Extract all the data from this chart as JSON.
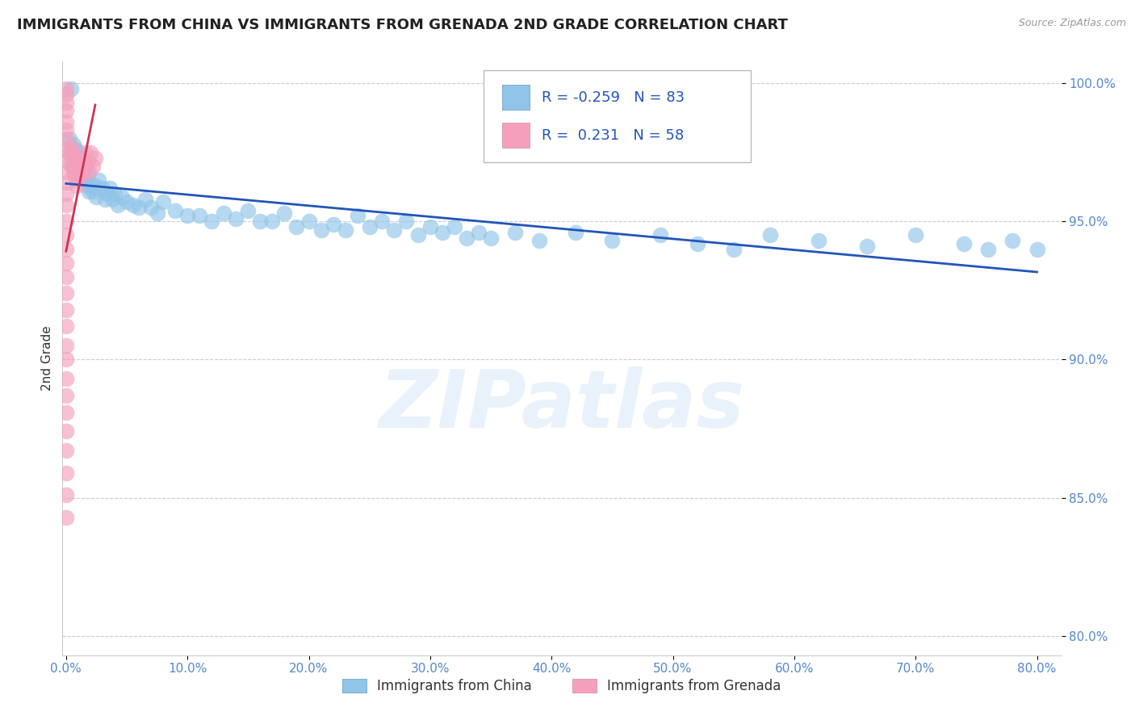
{
  "title": "IMMIGRANTS FROM CHINA VS IMMIGRANTS FROM GRENADA 2ND GRADE CORRELATION CHART",
  "source": "Source: ZipAtlas.com",
  "ylabel": "2nd Grade",
  "legend_china": "Immigrants from China",
  "legend_grenada": "Immigrants from Grenada",
  "R_china": -0.259,
  "N_china": 83,
  "R_grenada": 0.231,
  "N_grenada": 58,
  "xlim_min": -0.003,
  "xlim_max": 0.82,
  "ylim_min": 0.793,
  "ylim_max": 1.008,
  "yticks": [
    0.8,
    0.85,
    0.9,
    0.95,
    1.0
  ],
  "ytick_labels": [
    "80.0%",
    "85.0%",
    "90.0%",
    "95.0%",
    "100.0%"
  ],
  "xticks": [
    0.0,
    0.1,
    0.2,
    0.3,
    0.4,
    0.5,
    0.6,
    0.7,
    0.8
  ],
  "xtick_labels": [
    "0.0%",
    "10.0%",
    "20.0%",
    "30.0%",
    "40.0%",
    "50.0%",
    "60.0%",
    "70.0%",
    "80.0%"
  ],
  "color_china": "#90C4E8",
  "color_grenada": "#F4A0BC",
  "trendline_china": "#2255BB",
  "trendline_grenada": "#CC3355",
  "watermark": "ZIPatlas",
  "dot_size": 200,
  "china_x": [
    0.003,
    0.004,
    0.005,
    0.005,
    0.006,
    0.007,
    0.008,
    0.008,
    0.009,
    0.01,
    0.01,
    0.011,
    0.012,
    0.012,
    0.013,
    0.014,
    0.015,
    0.016,
    0.017,
    0.018,
    0.019,
    0.02,
    0.022,
    0.024,
    0.025,
    0.027,
    0.03,
    0.032,
    0.034,
    0.036,
    0.038,
    0.04,
    0.043,
    0.046,
    0.05,
    0.055,
    0.06,
    0.065,
    0.07,
    0.075,
    0.08,
    0.09,
    0.1,
    0.11,
    0.12,
    0.13,
    0.14,
    0.15,
    0.16,
    0.17,
    0.18,
    0.19,
    0.2,
    0.21,
    0.22,
    0.23,
    0.24,
    0.25,
    0.26,
    0.27,
    0.28,
    0.29,
    0.3,
    0.31,
    0.32,
    0.33,
    0.34,
    0.35,
    0.37,
    0.39,
    0.42,
    0.45,
    0.49,
    0.52,
    0.55,
    0.58,
    0.62,
    0.66,
    0.7,
    0.74,
    0.76,
    0.78,
    0.8
  ],
  "china_y": [
    0.98,
    0.998,
    0.975,
    0.97,
    0.978,
    0.974,
    0.972,
    0.976,
    0.97,
    0.975,
    0.968,
    0.973,
    0.97,
    0.966,
    0.968,
    0.965,
    0.97,
    0.965,
    0.963,
    0.967,
    0.961,
    0.963,
    0.961,
    0.963,
    0.959,
    0.965,
    0.962,
    0.958,
    0.96,
    0.962,
    0.958,
    0.96,
    0.956,
    0.959,
    0.957,
    0.956,
    0.955,
    0.958,
    0.955,
    0.953,
    0.957,
    0.954,
    0.952,
    0.952,
    0.95,
    0.953,
    0.951,
    0.954,
    0.95,
    0.95,
    0.953,
    0.948,
    0.95,
    0.947,
    0.949,
    0.947,
    0.952,
    0.948,
    0.95,
    0.947,
    0.95,
    0.945,
    0.948,
    0.946,
    0.948,
    0.944,
    0.946,
    0.944,
    0.946,
    0.943,
    0.946,
    0.943,
    0.945,
    0.942,
    0.94,
    0.945,
    0.943,
    0.941,
    0.945,
    0.942,
    0.94,
    0.943,
    0.94
  ],
  "grenada_x": [
    0.0,
    0.0,
    0.0,
    0.0,
    0.0,
    0.0,
    0.0,
    0.0,
    0.0,
    0.0,
    0.0,
    0.0,
    0.0,
    0.0,
    0.0,
    0.0,
    0.0,
    0.0,
    0.0,
    0.0,
    0.0,
    0.0,
    0.0,
    0.0,
    0.0,
    0.0,
    0.0,
    0.0,
    0.0,
    0.0,
    0.0,
    0.003,
    0.004,
    0.004,
    0.005,
    0.005,
    0.006,
    0.006,
    0.007,
    0.007,
    0.008,
    0.008,
    0.009,
    0.009,
    0.01,
    0.01,
    0.011,
    0.012,
    0.013,
    0.014,
    0.015,
    0.016,
    0.017,
    0.018,
    0.019,
    0.02,
    0.022,
    0.024
  ],
  "grenada_y": [
    0.998,
    0.996,
    0.993,
    0.99,
    0.986,
    0.983,
    0.98,
    0.976,
    0.972,
    0.968,
    0.964,
    0.96,
    0.956,
    0.95,
    0.945,
    0.94,
    0.935,
    0.93,
    0.924,
    0.918,
    0.912,
    0.905,
    0.9,
    0.893,
    0.887,
    0.881,
    0.874,
    0.867,
    0.859,
    0.851,
    0.843,
    0.975,
    0.977,
    0.972,
    0.975,
    0.97,
    0.972,
    0.968,
    0.972,
    0.967,
    0.97,
    0.965,
    0.968,
    0.963,
    0.97,
    0.966,
    0.972,
    0.968,
    0.972,
    0.968,
    0.972,
    0.975,
    0.97,
    0.972,
    0.968,
    0.975,
    0.97,
    0.973
  ]
}
